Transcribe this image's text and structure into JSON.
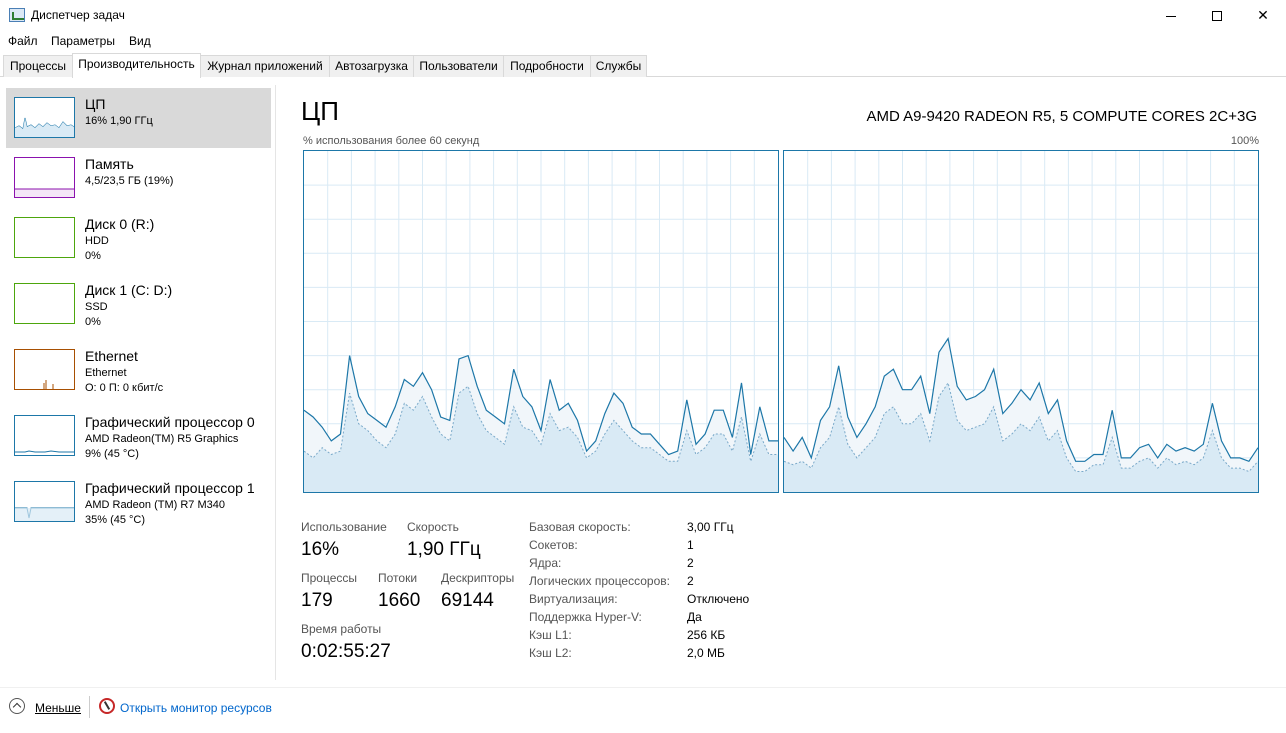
{
  "window": {
    "title": "Диспетчер задач"
  },
  "menu": [
    "Файл",
    "Параметры",
    "Вид"
  ],
  "tabs": [
    "Процессы",
    "Производительность",
    "Журнал приложений",
    "Автозагрузка",
    "Пользователи",
    "Подробности",
    "Службы"
  ],
  "active_tab": 1,
  "sidebar": [
    {
      "name": "ЦП",
      "line1": "16% 1,90 ГГц",
      "line2": "",
      "color": "#1d77a8",
      "active": true
    },
    {
      "name": "Память",
      "line1": "4,5/23,5 ГБ (19%)",
      "line2": "",
      "color": "#8b12ae",
      "active": false
    },
    {
      "name": "Диск 0 (R:)",
      "line1": "HDD",
      "line2": "0%",
      "color": "#4da60c",
      "active": false
    },
    {
      "name": "Диск 1 (C: D:)",
      "line1": "SSD",
      "line2": "0%",
      "color": "#4da60c",
      "active": false
    },
    {
      "name": "Ethernet",
      "line1": "Ethernet",
      "line2": "О: 0 П: 0 кбит/с",
      "color": "#a74f01",
      "active": false
    },
    {
      "name": "Графический процессор 0",
      "line1": "AMD Radeon(TM) R5 Graphics",
      "line2": "9% (45 °C)",
      "color": "#1d77a8",
      "active": false
    },
    {
      "name": "Графический процессор 1",
      "line1": "AMD Radeon (TM) R7 M340",
      "line2": "35% (45 °C)",
      "color": "#1d77a8",
      "active": false
    }
  ],
  "main": {
    "title": "ЦП",
    "model": "AMD A9-9420 RADEON R5, 5 COMPUTE CORES 2C+3G",
    "graph_caption": "% использования более 60 секунд",
    "graph_max": "100%",
    "stats": {
      "usage_label": "Использование",
      "usage_value": "16%",
      "speed_label": "Скорость",
      "speed_value": "1,90 ГГц",
      "processes_label": "Процессы",
      "processes_value": "179",
      "threads_label": "Потоки",
      "threads_value": "1660",
      "handles_label": "Дескрипторы",
      "handles_value": "69144",
      "uptime_label": "Время работы",
      "uptime_value": "0:02:55:27"
    },
    "specs": [
      {
        "label": "Базовая скорость:",
        "value": "3,00 ГГц"
      },
      {
        "label": "Сокетов:",
        "value": "1"
      },
      {
        "label": "Ядра:",
        "value": "2"
      },
      {
        "label": "Логических процессоров:",
        "value": "2"
      },
      {
        "label": "Виртуализация:",
        "value": "Отключено"
      },
      {
        "label": "Поддержка Hyper-V:",
        "value": "Да"
      },
      {
        "label": "Кэш L1:",
        "value": "256 КБ"
      },
      {
        "label": "Кэш L2:",
        "value": "2,0 МБ"
      }
    ]
  },
  "chart_data": [
    {
      "type": "area",
      "title": "",
      "ylim": [
        0,
        100
      ],
      "series": [
        {
          "name": "",
          "values": [
            24,
            22,
            19,
            15,
            17,
            40,
            28,
            23,
            21,
            19,
            25,
            33,
            31,
            35,
            30,
            22,
            21,
            39,
            40,
            31,
            24,
            22,
            20,
            36,
            28,
            25,
            18,
            33,
            24,
            26,
            21,
            12,
            15,
            23,
            29,
            26,
            19,
            17,
            17,
            14,
            11,
            12,
            27,
            14,
            17,
            24,
            24,
            16,
            32,
            11,
            25,
            15,
            15
          ]
        },
        {
          "name": "",
          "values": [
            12,
            10,
            13,
            11,
            12,
            29,
            20,
            18,
            15,
            13,
            17,
            26,
            24,
            28,
            22,
            17,
            15,
            29,
            31,
            23,
            18,
            16,
            14,
            25,
            19,
            18,
            14,
            23,
            18,
            19,
            16,
            10,
            12,
            17,
            21,
            18,
            15,
            13,
            13,
            11,
            9,
            9,
            18,
            11,
            13,
            17,
            17,
            12,
            22,
            9,
            17,
            11,
            11
          ]
        }
      ]
    },
    {
      "type": "area",
      "title": "",
      "ylim": [
        0,
        100
      ],
      "series": [
        {
          "name": "",
          "values": [
            16,
            12,
            16,
            10,
            21,
            25,
            37,
            22,
            16,
            20,
            25,
            34,
            36,
            30,
            30,
            34,
            23,
            41,
            45,
            31,
            27,
            28,
            30,
            36,
            23,
            26,
            30,
            27,
            32,
            23,
            27,
            15,
            9,
            9,
            11,
            11,
            24,
            10,
            10,
            13,
            14,
            10,
            14,
            12,
            13,
            12,
            14,
            26,
            15,
            10,
            10,
            9,
            13
          ]
        },
        {
          "name": "",
          "values": [
            9,
            8,
            9,
            7,
            13,
            16,
            25,
            14,
            10,
            13,
            16,
            23,
            25,
            20,
            20,
            23,
            15,
            28,
            32,
            21,
            18,
            19,
            20,
            25,
            15,
            17,
            20,
            18,
            22,
            15,
            18,
            10,
            6,
            6,
            8,
            8,
            16,
            7,
            7,
            9,
            10,
            7,
            10,
            8,
            9,
            8,
            10,
            18,
            10,
            7,
            7,
            6,
            9
          ]
        }
      ]
    }
  ]
}
